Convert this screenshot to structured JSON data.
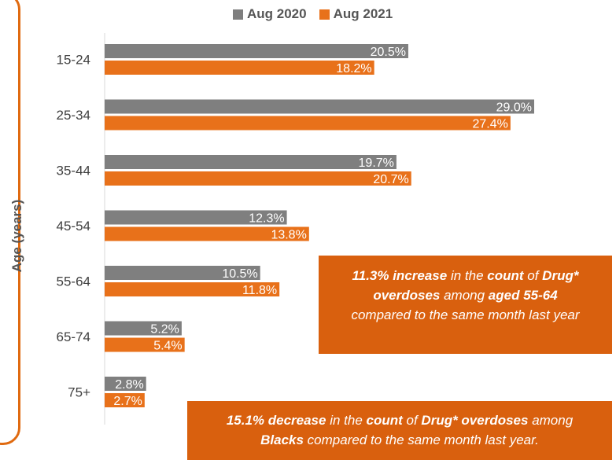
{
  "chart_data": {
    "type": "bar",
    "orientation": "horizontal",
    "ylabel": "Age (years)",
    "categories": [
      "15-24",
      "25-34",
      "35-44",
      "45-54",
      "55-64",
      "65-74",
      "75+"
    ],
    "series": [
      {
        "name": "Aug 2020",
        "color": "#7F7F7F",
        "values": [
          20.5,
          29.0,
          19.7,
          12.3,
          10.5,
          5.2,
          2.8
        ],
        "labels": [
          "20.5%",
          "29.0%",
          "19.7%",
          "12.3%",
          "10.5%",
          "5.2%",
          "2.8%"
        ]
      },
      {
        "name": "Aug 2021",
        "color": "#E8711A",
        "values": [
          18.2,
          27.4,
          20.7,
          13.8,
          11.8,
          5.4,
          2.7
        ],
        "labels": [
          "18.2%",
          "27.4%",
          "20.7%",
          "13.8%",
          "11.8%",
          "5.4%",
          "2.7%"
        ]
      }
    ],
    "xlim": [
      0,
      29.0
    ],
    "legend_position": "top"
  },
  "callouts": {
    "first": {
      "l1_a": "11.3% increase",
      "l1_b": " in the ",
      "l1_c": "count",
      "l1_d": " of ",
      "l1_e": "Drug*",
      "l2_a": "overdoses",
      "l2_b": " among ",
      "l2_c": "aged 55-64",
      "l3": "compared to the same month last year"
    },
    "second": {
      "l1_a": "15.1% decrease",
      "l1_b": " in the ",
      "l1_c": "count",
      "l1_d": " of ",
      "l1_e": "Drug* overdoses",
      "l1_f": " among",
      "l2_a": "Blacks",
      "l2_b": " compared to the same month last year."
    }
  }
}
